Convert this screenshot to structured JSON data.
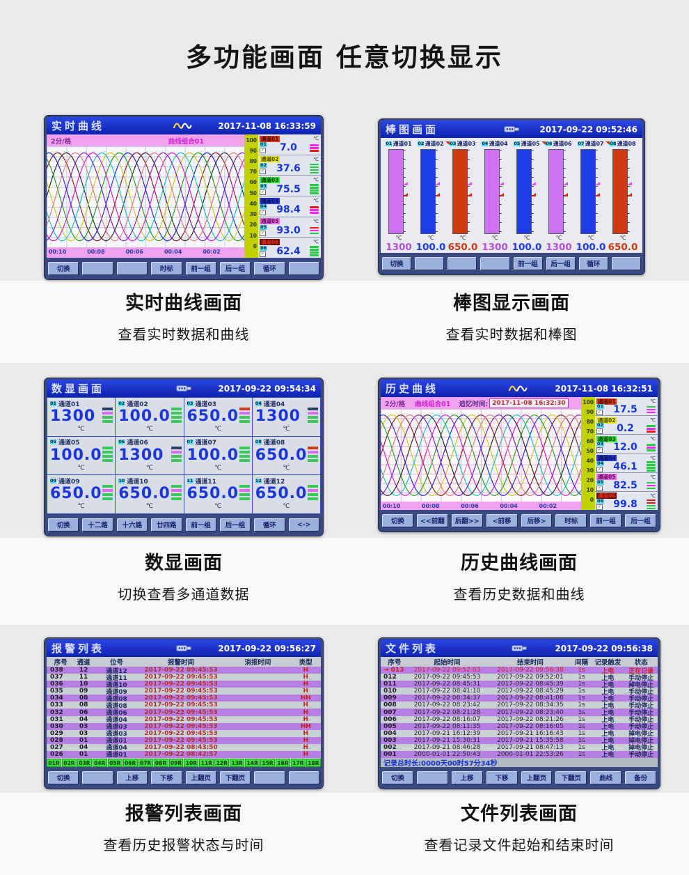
{
  "page": {
    "title": "多功能画面  任意切换显示"
  },
  "captions": [
    {
      "title": "实时曲线画面",
      "subtitle": "查看实时数据和曲线"
    },
    {
      "title": "棒图显示画面",
      "subtitle": "查看实时数据和棒图"
    },
    {
      "title": "数显画面",
      "subtitle": "切换查看多通道数据"
    },
    {
      "title": "历史曲线画面",
      "subtitle": "查看历史数据和曲线"
    },
    {
      "title": "报警列表画面",
      "subtitle": "查看历史报警状态与时间"
    },
    {
      "title": "文件列表画面",
      "subtitle": "查看记录文件起始和结束时间"
    }
  ],
  "panels": {
    "realtime": {
      "title": "实时曲线",
      "timestamp": "2017-11-08 16:33:59",
      "scale_label": "2分/格",
      "group_label": "曲线组合01",
      "y_ticks": [
        "100",
        "90",
        "80",
        "70",
        "60",
        "50",
        "40",
        "30",
        "20",
        "10",
        "0"
      ],
      "time_ticks": [
        "00:10",
        "00:08",
        "00:06",
        "00:04",
        "00:02"
      ],
      "curve_colors": [
        "#222222",
        "#8b1a1a",
        "#2020e0",
        "#18a018",
        "#c8c818",
        "#18c0c0",
        "#d018d0",
        "#7818c8",
        "#e07878"
      ],
      "channels": [
        {
          "no": "01",
          "name": "通道01",
          "unit": "℃",
          "value": "7.0",
          "chip_bg": "#e83914",
          "chip_fg": "#3a0a00",
          "ind": [
            "#ff22ff",
            "#ff22ff",
            "#ee1111"
          ]
        },
        {
          "no": "02",
          "name": "通道02",
          "unit": "℃",
          "value": "37.6",
          "chip_bg": "#e6e600",
          "chip_fg": "#4a4a00",
          "ind": [
            "#22cc44",
            "#22cc44",
            "#22cc44",
            "#22cc44"
          ]
        },
        {
          "no": "03",
          "name": "通道03",
          "unit": "℃",
          "value": "75.5",
          "chip_bg": "#2ee22e",
          "chip_fg": "#0a3a0a",
          "ind": [
            "#22cc44",
            "#22cc44",
            "#22cc44",
            "#22cc44"
          ]
        },
        {
          "no": "04",
          "name": "通道04",
          "unit": "℃",
          "value": "98.4",
          "chip_bg": "#2438d8",
          "chip_fg": "#0a1050",
          "ind": [
            "#ee1111",
            "#ff22ff",
            "#ff22ff"
          ]
        },
        {
          "no": "05",
          "name": "通道05",
          "unit": "℃",
          "value": "93.0",
          "chip_bg": "#ee66ee",
          "chip_fg": "#55104a",
          "ind": [
            "#ee1111",
            "#ff22ff",
            "#22cc44"
          ]
        },
        {
          "no": "06",
          "name": "通道06",
          "unit": "℃",
          "value": "62.4",
          "chip_bg": "#6b1008",
          "chip_fg": "#e03020",
          "ind": [
            "#22cc44",
            "#22cc44",
            "#22cc44",
            "#22cc44"
          ]
        }
      ],
      "buttons": [
        "切换",
        "",
        "",
        "时标",
        "前一组",
        "后一组",
        "循环",
        ""
      ]
    },
    "bar": {
      "title": "棒图画面",
      "timestamp": "2017-09-22 09:52:46",
      "marker_colors": [
        "#d855e0",
        "#dd2211"
      ],
      "channels": [
        {
          "no": "01",
          "name": "通道01",
          "unit": "℃",
          "value": "1300",
          "color": "#cf72ef",
          "value_color": "#b44fd9",
          "peak_marker": false
        },
        {
          "no": "02",
          "name": "通道02",
          "unit": "℃",
          "value": "100.0",
          "color": "#1d3ce8",
          "value_color": "#1d3ce8",
          "peak_marker": true
        },
        {
          "no": "03",
          "name": "通道03",
          "unit": "℃",
          "value": "650.0",
          "color": "#cf3a10",
          "value_color": "#cf3a10",
          "peak_marker": false
        },
        {
          "no": "04",
          "name": "通道04",
          "unit": "℃",
          "value": "1300",
          "color": "#cf72ef",
          "value_color": "#b44fd9",
          "peak_marker": false
        },
        {
          "no": "05",
          "name": "通道05",
          "unit": "℃",
          "value": "100.0",
          "color": "#1d3ce8",
          "value_color": "#1d3ce8",
          "peak_marker": true
        },
        {
          "no": "06",
          "name": "通道06",
          "unit": "℃",
          "value": "1300",
          "color": "#cf72ef",
          "value_color": "#b44fd9",
          "peak_marker": false
        },
        {
          "no": "07",
          "name": "通道07",
          "unit": "℃",
          "value": "100.0",
          "color": "#1d3ce8",
          "value_color": "#1d3ce8",
          "peak_marker": true
        },
        {
          "no": "08",
          "name": "通道08",
          "unit": "℃",
          "value": "650.0",
          "color": "#cf3a10",
          "value_color": "#cf3a10",
          "peak_marker": false
        }
      ],
      "buttons": [
        "切换",
        "",
        "",
        "",
        "前一组",
        "后一组",
        "循环",
        ""
      ]
    },
    "digital": {
      "title": "数显画面",
      "timestamp": "2017-09-22 09:54:34",
      "cells": [
        {
          "no": "01",
          "name": "通道01",
          "value": "1300",
          "unit": "℃",
          "ind": [
            "#2e3f66",
            "#d86ef0",
            "#3cc85a",
            "#3cc85a"
          ]
        },
        {
          "no": "02",
          "name": "通道02",
          "value": "100.0",
          "unit": "℃",
          "ind": [
            "#3cc85a",
            "#3cc85a",
            "#3cc85a",
            "#3cc85a"
          ]
        },
        {
          "no": "03",
          "name": "通道03",
          "value": "650.0",
          "unit": "℃",
          "ind": [
            "#cc3a14",
            "#d86ef0",
            "#3cc85a",
            "#3cc85a"
          ]
        },
        {
          "no": "04",
          "name": "通道04",
          "value": "1300",
          "unit": "℃",
          "ind": [
            "#2e3f66",
            "#d86ef0",
            "#3cc85a",
            "#3cc85a"
          ]
        },
        {
          "no": "05",
          "name": "通道05",
          "value": "100.0",
          "unit": "℃",
          "ind": [
            "#3cc85a",
            "#3cc85a",
            "#3cc85a",
            "#3cc85a"
          ]
        },
        {
          "no": "06",
          "name": "通道06",
          "value": "1300",
          "unit": "℃",
          "ind": [
            "#2e3f66",
            "#d86ef0",
            "#3cc85a",
            "#3cc85a"
          ]
        },
        {
          "no": "07",
          "name": "通道07",
          "value": "100.0",
          "unit": "℃",
          "ind": [
            "#3cc85a",
            "#3cc85a",
            "#3cc85a",
            "#3cc85a"
          ]
        },
        {
          "no": "08",
          "name": "通道08",
          "value": "650.0",
          "unit": "℃",
          "ind": [
            "#cc3a14",
            "#d86ef0",
            "#3cc85a",
            "#3cc85a"
          ]
        },
        {
          "no": "09",
          "name": "通道09",
          "value": "650.0",
          "unit": "℃",
          "ind": [
            "#3cc85a",
            "#d86ef0",
            "#3cc85a",
            "#3cc85a"
          ]
        },
        {
          "no": "10",
          "name": "通道10",
          "value": "650.0",
          "unit": "℃",
          "ind": [
            "#3cc85a",
            "#d86ef0",
            "#3cc85a",
            "#3cc85a"
          ]
        },
        {
          "no": "11",
          "name": "通道11",
          "value": "650.0",
          "unit": "℃",
          "ind": [
            "#3cc85a",
            "#d86ef0",
            "#3cc85a",
            "#3cc85a"
          ]
        },
        {
          "no": "12",
          "name": "通道12",
          "value": "650.0",
          "unit": "℃",
          "ind": [
            "#3cc85a",
            "#d86ef0",
            "#3cc85a",
            "#3cc85a"
          ]
        }
      ],
      "buttons": [
        "切换",
        "十二路",
        "十六路",
        "廿四路",
        "前一组",
        "后一组",
        "循环",
        "<->"
      ]
    },
    "history": {
      "title": "历史曲线",
      "timestamp": "2017-11-08 16:32:51",
      "scale_label": "2分/格",
      "group_label": "曲线组合01",
      "recall_label": "追忆时间:",
      "recall_time": "2017-11-08 16:32:30",
      "y_ticks": [
        "100",
        "90",
        "80",
        "70",
        "60",
        "50",
        "40",
        "30",
        "20",
        "10",
        "0"
      ],
      "time_ticks": [
        "00:10",
        "00:08",
        "00:06",
        "00:04",
        "00:02"
      ],
      "curve_colors": [
        "#8b1a1a",
        "#c8c818",
        "#2020e0",
        "#18a018",
        "#d018d0",
        "#18c0c0",
        "#222222",
        "#7818c8",
        "#e07878"
      ],
      "channels": [
        {
          "no": "01",
          "name": "通道01",
          "unit": "℃",
          "value": "17.5",
          "chip_bg": "#e83914",
          "chip_fg": "#3a0a00",
          "ind": [
            "#22cc44",
            "#ff22ff",
            "#ff22ff"
          ]
        },
        {
          "no": "02",
          "name": "通道02",
          "unit": "℃",
          "value": "0.2",
          "chip_bg": "#e6e600",
          "chip_fg": "#4a4a00",
          "ind": [
            "#22cc44",
            "#ff22ff",
            "#ee1111"
          ]
        },
        {
          "no": "03",
          "name": "通道03",
          "unit": "℃",
          "value": "12.0",
          "chip_bg": "#2ee22e",
          "chip_fg": "#0a3a0a",
          "ind": [
            "#22cc44",
            "#ff22ff",
            "#22cc44"
          ]
        },
        {
          "no": "04",
          "name": "通道04",
          "unit": "℃",
          "value": "46.1",
          "chip_bg": "#2438d8",
          "chip_fg": "#0a1050",
          "ind": [
            "#22cc44",
            "#22cc44",
            "#22cc44",
            "#22cc44"
          ]
        },
        {
          "no": "05",
          "name": "通道05",
          "unit": "℃",
          "value": "82.5",
          "chip_bg": "#ee66ee",
          "chip_fg": "#55104a",
          "ind": [
            "#22cc44",
            "#ff22ff",
            "#22cc44"
          ]
        },
        {
          "no": "06",
          "name": "通道06",
          "unit": "℃",
          "value": "99.8",
          "chip_bg": "#6b1008",
          "chip_fg": "#e03020",
          "ind": [
            "#ee1111",
            "#ee1111",
            "#22cc44",
            "#22cc44"
          ]
        }
      ],
      "buttons": [
        "切换",
        "<<前翻",
        "后翻>>",
        "<前移",
        "后移>",
        "时标",
        "前一组",
        "后一组"
      ]
    },
    "alarm": {
      "title": "报警列表",
      "timestamp": "2017-09-22 09:56:27",
      "headers": [
        "序号",
        "通道",
        "位号",
        "报警时间",
        "消报时间",
        "类型"
      ],
      "rows": [
        [
          "038",
          "12",
          "通道12",
          "2017-09-22 09:45:53",
          "",
          "H"
        ],
        [
          "037",
          "11",
          "通道11",
          "2017-09-22 09:45:53",
          "",
          "H"
        ],
        [
          "036",
          "10",
          "通道10",
          "2017-09-22 09:45:53",
          "",
          "H"
        ],
        [
          "035",
          "09",
          "通道09",
          "2017-09-22 09:45:53",
          "",
          "H"
        ],
        [
          "034",
          "08",
          "通道08",
          "2017-09-22 09:45:53",
          "",
          "HH"
        ],
        [
          "033",
          "08",
          "通道08",
          "2017-09-22 09:45:53",
          "",
          "H"
        ],
        [
          "032",
          "06",
          "通道06",
          "2017-09-22 09:45:53",
          "",
          "H"
        ],
        [
          "031",
          "04",
          "通道04",
          "2017-09-22 09:45:53",
          "",
          "H"
        ],
        [
          "030",
          "03",
          "通道03",
          "2017-09-22 09:45:53",
          "",
          "HH"
        ],
        [
          "029",
          "03",
          "通道03",
          "2017-09-22 09:45:53",
          "",
          "H"
        ],
        [
          "028",
          "01",
          "通道01",
          "2017-09-22 09:45:53",
          "",
          "H"
        ],
        [
          "027",
          "04",
          "通道04",
          "2017-09-22 08:43:50",
          "",
          "H"
        ],
        [
          "026",
          "01",
          "通道01",
          "2017-09-22 08:42:57",
          "",
          "H"
        ]
      ],
      "tags": [
        "01R",
        "02R",
        "03R",
        "04R",
        "05R",
        "06R",
        "07R",
        "08R",
        "09R",
        "10R",
        "11R",
        "12R",
        "13R",
        "14R",
        "15R",
        "16R",
        "17R",
        "18R"
      ],
      "buttons": [
        "切换",
        "",
        "上移",
        "下移",
        "上翻页",
        "下翻页",
        "",
        ""
      ]
    },
    "files": {
      "title": "文件列表",
      "timestamp": "2017-09-22 09:56:38",
      "headers": [
        "序号",
        "起始时间",
        "结束时间",
        "间隔",
        "记录触发",
        "状态"
      ],
      "current_marker": "→",
      "rows": [
        {
          "seq": "013",
          "start": "2017-09-22 09:52:03",
          "end": "2017-09-22 09:56:38",
          "interval": "1s",
          "trigger": "上电",
          "status": "正在记录",
          "current": true
        },
        {
          "seq": "012",
          "start": "2017-09-22 09:45:53",
          "end": "2017-09-22 09:52:01",
          "interval": "1s",
          "trigger": "上电",
          "status": "手动停止",
          "current": false
        },
        {
          "seq": "011",
          "start": "2017-09-22 08:45:31",
          "end": "2017-09-22 08:45:39",
          "interval": "1s",
          "trigger": "上电",
          "status": "掉电停止",
          "current": false
        },
        {
          "seq": "010",
          "start": "2017-09-22 08:41:10",
          "end": "2017-09-22 08:45:29",
          "interval": "1s",
          "trigger": "上电",
          "status": "手动停止",
          "current": false
        },
        {
          "seq": "009",
          "start": "2017-09-22 08:34:37",
          "end": "2017-09-22 08:41:08",
          "interval": "1s",
          "trigger": "上电",
          "status": "手动停止",
          "current": false
        },
        {
          "seq": "008",
          "start": "2017-09-22 08:23:42",
          "end": "2017-09-22 08:34:35",
          "interval": "1s",
          "trigger": "上电",
          "status": "手动停止",
          "current": false
        },
        {
          "seq": "007",
          "start": "2017-09-22 08:21:28",
          "end": "2017-09-22 08:23:40",
          "interval": "1s",
          "trigger": "上电",
          "status": "手动停止",
          "current": false
        },
        {
          "seq": "006",
          "start": "2017-09-22 08:16:07",
          "end": "2017-09-22 08:21:26",
          "interval": "1s",
          "trigger": "上电",
          "status": "手动停止",
          "current": false
        },
        {
          "seq": "005",
          "start": "2017-09-22 08:11:35",
          "end": "2017-09-22 08:16:05",
          "interval": "1s",
          "trigger": "上电",
          "status": "手动停止",
          "current": false
        },
        {
          "seq": "004",
          "start": "2017-09-21 16:12:39",
          "end": "2017-09-21 16:16:43",
          "interval": "1s",
          "trigger": "上电",
          "status": "掉电停止",
          "current": false
        },
        {
          "seq": "003",
          "start": "2017-09-21 15:30:31",
          "end": "2017-09-21 15:35:58",
          "interval": "1s",
          "trigger": "上电",
          "status": "掉电停止",
          "current": false
        },
        {
          "seq": "002",
          "start": "2017-09-21 08:46:28",
          "end": "2017-09-21 08:47:13",
          "interval": "1s",
          "trigger": "上电",
          "status": "掉电停止",
          "current": false
        },
        {
          "seq": "001",
          "start": "2000-01-01 22:50:43",
          "end": "2000-01-01 22:53:26",
          "interval": "1s",
          "trigger": "上电",
          "status": "手动停止",
          "current": false
        }
      ],
      "total_label": "记录总时长:0000天00时57分34秒",
      "buttons": [
        "切换",
        "",
        "上移",
        "下移",
        "上翻页",
        "下翻页",
        "曲线",
        "备份"
      ]
    }
  }
}
